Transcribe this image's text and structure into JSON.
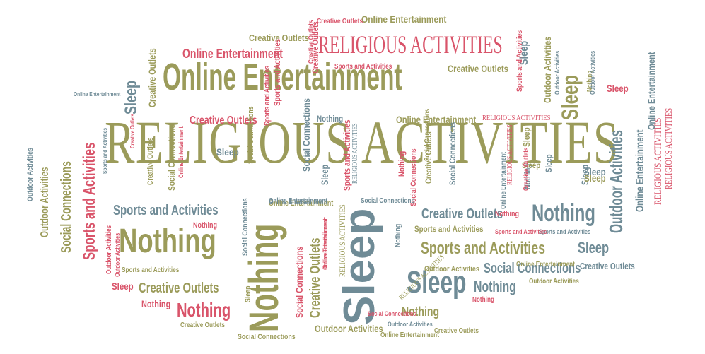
{
  "colors": {
    "olive": "#9b9b5a",
    "red": "#d9546a",
    "blue": "#6f8b96"
  },
  "words": [
    {
      "text": "RELIGIOUS ACTIVITIES",
      "color": "olive"
    },
    {
      "text": "Online Entertainment",
      "color": "olive"
    },
    {
      "text": "Sleep",
      "color": "blue"
    },
    {
      "text": "Nothing",
      "color": "olive"
    },
    {
      "text": "Nothing",
      "color": "olive"
    },
    {
      "text": "Sleep",
      "color": "blue"
    },
    {
      "text": "RELIGIOUS ACTIVITIES",
      "color": "red"
    },
    {
      "text": "Online Entertainment",
      "color": "red"
    },
    {
      "text": "Online Entertainment",
      "color": "olive"
    },
    {
      "text": "Creative Outlets",
      "color": "olive"
    },
    {
      "text": "Creative Outlets",
      "color": "red"
    },
    {
      "text": "Sleep",
      "color": "olive"
    },
    {
      "text": "Sleep",
      "color": "blue"
    },
    {
      "text": "Outdoor Activities",
      "color": "blue"
    },
    {
      "text": "Nothing",
      "color": "blue"
    },
    {
      "text": "Online Entertainment",
      "color": "blue"
    },
    {
      "text": "RELIGIOUS ACTIVITIES",
      "color": "red"
    },
    {
      "text": "Sports and Activities",
      "color": "red"
    },
    {
      "text": "Social Connections",
      "color": "olive"
    },
    {
      "text": "Outdoor Activities",
      "color": "olive"
    },
    {
      "text": "Sports and Activities",
      "color": "blue"
    },
    {
      "text": "Creative Outlets",
      "color": "blue"
    },
    {
      "text": "Sports and Activities",
      "color": "olive"
    },
    {
      "text": "Nothing",
      "color": "red"
    },
    {
      "text": "Nothing",
      "color": "blue"
    },
    {
      "text": "Sleep",
      "color": "blue"
    },
    {
      "text": "Creative Outlets",
      "color": "olive"
    },
    {
      "text": "Social Connections",
      "color": "blue"
    },
    {
      "text": "Sleep",
      "color": "blue"
    },
    {
      "text": "Creative Outlets",
      "color": "red"
    },
    {
      "text": "Creative Outlets",
      "color": "olive"
    },
    {
      "text": "Nothing",
      "color": "olive"
    },
    {
      "text": "Nothing",
      "color": "red"
    },
    {
      "text": "Outdoor Activities",
      "color": "olive"
    },
    {
      "text": "Social Connections",
      "color": "blue"
    },
    {
      "text": "Creative Outlets",
      "color": "olive"
    },
    {
      "text": "Online Entertainment",
      "color": "olive"
    },
    {
      "text": "Creative Outlets",
      "color": "blue"
    },
    {
      "text": "Online Entertainment",
      "color": "olive"
    },
    {
      "text": "Sleep",
      "color": "blue"
    },
    {
      "text": "Outdoor Activities",
      "color": "olive"
    },
    {
      "text": "Sports and Activities",
      "color": "red"
    },
    {
      "text": "Sleep",
      "color": "blue"
    },
    {
      "text": "Sleep",
      "color": "blue"
    },
    {
      "text": "Creative Outlets",
      "color": "olive"
    },
    {
      "text": "Social Connections",
      "color": "blue"
    },
    {
      "text": "Sports and Activities",
      "color": "red"
    },
    {
      "text": "Social Connections",
      "color": "olive"
    },
    {
      "text": "Social Connections",
      "color": "red"
    },
    {
      "text": "Social Connections",
      "color": "olive"
    },
    {
      "text": "Social Connections",
      "color": "blue"
    },
    {
      "text": "Sleep",
      "color": "olive"
    },
    {
      "text": "Outdoor Activities",
      "color": "olive"
    },
    {
      "text": "Outdoor Activities",
      "color": "blue"
    },
    {
      "text": "Outdoor Activities",
      "color": "olive"
    },
    {
      "text": "Outdoor Activities",
      "color": "red"
    },
    {
      "text": "Nothing",
      "color": "red"
    },
    {
      "text": "Nothing",
      "color": "blue"
    },
    {
      "text": "Nothing",
      "color": "red"
    },
    {
      "text": "Sleep",
      "color": "red"
    },
    {
      "text": "Sleep",
      "color": "red"
    },
    {
      "text": "Sleep",
      "color": "olive"
    },
    {
      "text": "Sports and Activities",
      "color": "red"
    },
    {
      "text": "Sports and Activities",
      "color": "olive"
    },
    {
      "text": "Sports and Activities",
      "color": "olive"
    },
    {
      "text": "Sports and Activities",
      "color": "blue"
    },
    {
      "text": "Sports and Activities",
      "color": "red"
    },
    {
      "text": "Sports and Activities",
      "color": "blue"
    },
    {
      "text": "Online Entertainment",
      "color": "blue"
    },
    {
      "text": "Online Entertainment",
      "color": "red"
    },
    {
      "text": "Online Entertainment",
      "color": "olive"
    },
    {
      "text": "Online Entertainment",
      "color": "blue"
    },
    {
      "text": "Online Entertainment",
      "color": "blue"
    },
    {
      "text": "Creative Outlets",
      "color": "red"
    },
    {
      "text": "Creative Outlets",
      "color": "olive"
    },
    {
      "text": "Creative Outlets",
      "color": "red"
    },
    {
      "text": "RELIGIOUS ACTIVITIES",
      "color": "olive"
    },
    {
      "text": "RELIGIOUS ACTIVITIES",
      "color": "red"
    },
    {
      "text": "RELIGIOUS ACTIVITIES",
      "color": "red"
    },
    {
      "text": "RELIGIOUS ACTIVITIES",
      "color": "blue"
    },
    {
      "text": "RELIGIOUS ACTIVITIES",
      "color": "olive"
    },
    {
      "text": "Nothing",
      "color": "blue"
    },
    {
      "text": "Social Connections",
      "color": "red"
    },
    {
      "text": "Sleep",
      "color": "blue"
    },
    {
      "text": "Creative Outlets",
      "color": "olive"
    },
    {
      "text": "Outdoor Activities",
      "color": "red"
    },
    {
      "text": "Online Entertainment",
      "color": "blue"
    },
    {
      "text": "Outdoor Activities",
      "color": "blue"
    },
    {
      "text": "Social Connections",
      "color": "blue"
    },
    {
      "text": "Social Connections",
      "color": "olive"
    },
    {
      "text": "Nothing",
      "color": "red"
    },
    {
      "text": "Sleep",
      "color": "olive"
    },
    {
      "text": "Outdoor Activities",
      "color": "blue"
    },
    {
      "text": "Social Connections",
      "color": "olive"
    },
    {
      "text": "Sports and Activities",
      "color": "red"
    },
    {
      "text": "Nothing",
      "color": "red"
    },
    {
      "text": "Creative Outlets",
      "color": "red"
    },
    {
      "text": "Nothing",
      "color": "blue"
    },
    {
      "text": "Online Entertainment",
      "color": "red"
    },
    {
      "text": "Creative Outlets",
      "color": "red"
    },
    {
      "text": "Sports and Activities",
      "color": "red"
    },
    {
      "text": "Sleep",
      "color": "blue"
    },
    {
      "text": "Nothing",
      "color": "olive"
    },
    {
      "text": "Outdoor Activities",
      "color": "blue"
    },
    {
      "text": "Creative Outlets",
      "color": "olive"
    },
    {
      "text": "Online Entertainment",
      "color": "red"
    },
    {
      "text": "Online Entertainment",
      "color": "olive"
    },
    {
      "text": "Online Entertainment",
      "color": "blue"
    },
    {
      "text": "RELIGIOUS ACTIVITIES",
      "color": "red"
    },
    {
      "text": "Sleep",
      "color": "olive"
    },
    {
      "text": "Social Connections",
      "color": "red"
    },
    {
      "text": "Creative Outlets",
      "color": "olive"
    }
  ]
}
